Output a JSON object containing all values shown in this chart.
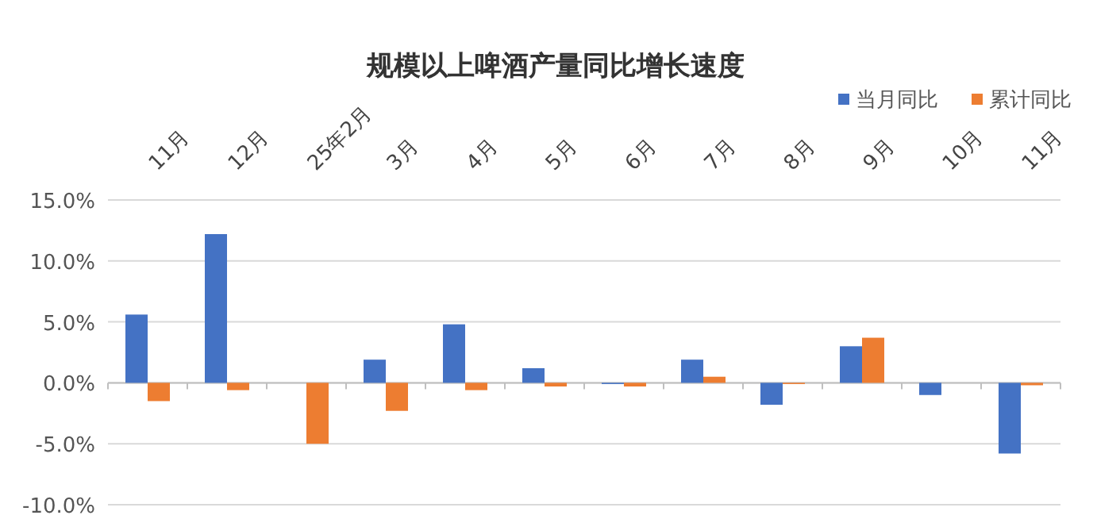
{
  "chart_data": {
    "type": "bar",
    "title": "规模以上啤酒产量同比增长速度",
    "categories": [
      "11月",
      "12月",
      "25年2月",
      "3月",
      "4月",
      "5月",
      "6月",
      "7月",
      "8月",
      "9月",
      "10月",
      "11月"
    ],
    "series": [
      {
        "name": "当月同比",
        "color": "#4472c4",
        "values": [
          5.6,
          12.2,
          null,
          1.9,
          4.8,
          1.2,
          -0.1,
          1.9,
          -1.8,
          3.0,
          -1.0,
          -5.8
        ]
      },
      {
        "name": "累计同比",
        "color": "#ed7d31",
        "values": [
          -1.5,
          -0.6,
          -5.0,
          -2.3,
          -0.6,
          -0.3,
          -0.3,
          0.5,
          -0.1,
          3.7,
          null,
          -0.2
        ]
      }
    ],
    "ylim": [
      -10,
      15
    ],
    "yticks": [
      {
        "value": -10,
        "label": "-10.0%"
      },
      {
        "value": -5,
        "label": "-5.0%"
      },
      {
        "value": 0,
        "label": "0.0%"
      },
      {
        "value": 5,
        "label": "5.0%"
      },
      {
        "value": 10,
        "label": "10.0%"
      },
      {
        "value": 15,
        "label": "15.0%"
      }
    ],
    "grid": "y",
    "legend": "top right"
  }
}
